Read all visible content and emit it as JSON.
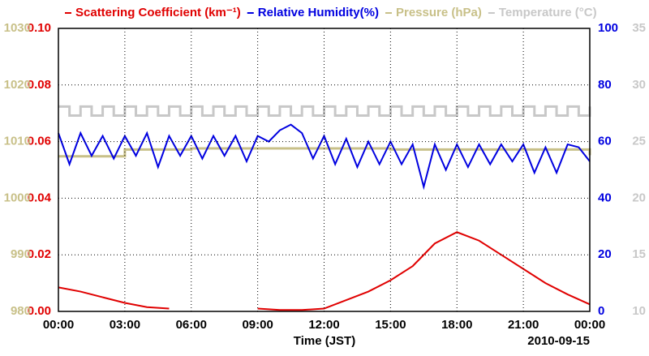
{
  "chart_data": {
    "type": "line",
    "xlabel": "Time (JST)",
    "date_label": "2010-09-15",
    "xlim": [
      0,
      24
    ],
    "xticks": [
      {
        "value": 0,
        "label": "00:00"
      },
      {
        "value": 3,
        "label": "03:00"
      },
      {
        "value": 6,
        "label": "06:00"
      },
      {
        "value": 9,
        "label": "09:00"
      },
      {
        "value": 12,
        "label": "12:00"
      },
      {
        "value": 15,
        "label": "15:00"
      },
      {
        "value": 18,
        "label": "18:00"
      },
      {
        "value": 21,
        "label": "21:00"
      },
      {
        "value": 24,
        "label": "00:00"
      }
    ],
    "ylim": [
      0,
      0.1
    ],
    "yticks": [
      {
        "value": 0,
        "label": "0.00"
      },
      {
        "value": 0.02,
        "label": "0.02"
      },
      {
        "value": 0.04,
        "label": "0.04"
      },
      {
        "value": 0.06,
        "label": "0.06"
      },
      {
        "value": 0.08,
        "label": "0.08"
      },
      {
        "value": 0.1,
        "label": "0.10"
      }
    ],
    "y2lim": [
      0,
      100
    ],
    "y2ticks": [
      0,
      20,
      40,
      60,
      80,
      100
    ],
    "y3lim": [
      980,
      1030
    ],
    "y3ticks": [
      980,
      990,
      1000,
      1010,
      1020,
      1030
    ],
    "y4lim": [
      10,
      35
    ],
    "y4ticks": [
      10,
      15,
      20,
      25,
      30,
      35
    ],
    "grid": true,
    "series": [
      {
        "name": "Scattering Coefficient (km⁻¹)",
        "color": "#e00000",
        "axis": "y",
        "x": [
          0,
          1,
          2,
          3,
          4,
          5,
          6,
          7,
          8,
          9,
          10,
          11,
          12,
          13,
          14,
          15,
          16,
          17,
          18,
          19,
          20,
          21,
          22,
          23,
          24
        ],
        "values": [
          0.0085,
          0.007,
          0.005,
          0.003,
          0.0015,
          0.001,
          null,
          null,
          null,
          0.001,
          0.0005,
          0.0005,
          0.001,
          0.004,
          0.007,
          0.011,
          0.016,
          0.024,
          0.028,
          0.025,
          0.02,
          0.015,
          0.01,
          0.006,
          0.0025
        ]
      },
      {
        "name": "Relative Humidity(%)",
        "color": "#0000e0",
        "axis": "y2",
        "x": [
          0,
          0.5,
          1,
          1.5,
          2,
          2.5,
          3,
          3.5,
          4,
          4.5,
          5,
          5.5,
          6,
          6.5,
          7,
          7.5,
          8,
          8.5,
          9,
          9.5,
          10,
          10.5,
          11,
          11.5,
          12,
          12.5,
          13,
          13.5,
          14,
          14.5,
          15,
          15.5,
          16,
          16.5,
          17,
          17.5,
          18,
          18.5,
          19,
          19.5,
          20,
          20.5,
          21,
          21.5,
          22,
          22.5,
          23,
          23.5,
          24
        ],
        "values": [
          63,
          52,
          63,
          55,
          62,
          54,
          62,
          55,
          63,
          51,
          62,
          55,
          62,
          54,
          62,
          55,
          62,
          53,
          62,
          60,
          64,
          66,
          63,
          54,
          62,
          52,
          61,
          51,
          60,
          52,
          60,
          52,
          59,
          44,
          59,
          50,
          59,
          51,
          59,
          52,
          59,
          53,
          59,
          49,
          58,
          49,
          59,
          58,
          53
        ]
      },
      {
        "name": "Pressure (hPa)",
        "color": "#c8c088",
        "axis": "y3",
        "step": true,
        "x": [
          0,
          3,
          6,
          9,
          12,
          15,
          18,
          21,
          24
        ],
        "values": [
          1007.4,
          1008.6,
          1008.8,
          1008.8,
          1008.8,
          1008.6,
          1008.6,
          1008.6,
          1007.6
        ]
      },
      {
        "name": "Temperature (°C)",
        "color": "#c8c8c8",
        "axis": "y4",
        "step": true,
        "x": [
          0,
          0.5,
          1,
          1.5,
          2,
          2.5,
          3,
          3.5,
          4,
          4.5,
          5,
          5.5,
          6,
          6.5,
          7,
          7.5,
          8,
          8.5,
          9,
          9.5,
          10,
          10.5,
          11,
          11.5,
          12,
          12.5,
          13,
          13.5,
          14,
          14.5,
          15,
          15.5,
          16,
          16.5,
          17,
          17.5,
          18,
          18.5,
          19,
          19.5,
          20,
          20.5,
          21,
          21.5,
          22,
          22.5,
          23,
          23.5,
          24
        ],
        "values": [
          28.1,
          27.3,
          28.1,
          27.3,
          28.1,
          27.3,
          28.1,
          27.3,
          28.1,
          27.3,
          28.1,
          27.3,
          28.1,
          27.3,
          28.1,
          27.3,
          28.1,
          27.3,
          28.1,
          27.3,
          28.1,
          27.3,
          28.1,
          27.3,
          28.1,
          27.3,
          28.1,
          27.3,
          28.1,
          27.3,
          28.1,
          27.3,
          28.1,
          27.3,
          28.1,
          27.3,
          28.1,
          27.3,
          28.1,
          27.3,
          28.1,
          27.3,
          28.1,
          27.3,
          28.1,
          27.3,
          28.1,
          27.3,
          28.1
        ]
      }
    ]
  }
}
